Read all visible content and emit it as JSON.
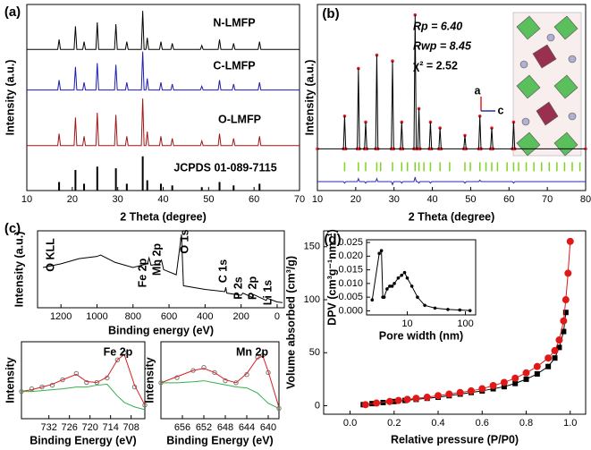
{
  "chart_data": [
    {
      "type": "line",
      "panel_label": "(a)",
      "xlabel": "2 Theta (degree)",
      "ylabel": "Intensity (a.u.)",
      "xlim": [
        10,
        70
      ],
      "xticks": [
        10,
        20,
        30,
        40,
        50,
        60,
        70
      ],
      "ylim": [
        0,
        4.35
      ],
      "x": [
        10,
        16.8,
        17.1,
        17.4,
        20.4,
        20.7,
        21.0,
        22.3,
        22.6,
        22.9,
        25.2,
        25.5,
        25.8,
        29.3,
        29.6,
        29.9,
        31.7,
        32.0,
        32.3,
        35.2,
        35.5,
        35.8,
        36.2,
        36.5,
        36.8,
        39.2,
        39.5,
        39.8,
        41.7,
        42.0,
        42.3,
        48.2,
        48.5,
        48.8,
        52.1,
        52.4,
        52.7,
        55.2,
        55.5,
        55.8,
        60.9,
        61.2,
        61.5,
        70
      ],
      "series": [
        {
          "name": "N-LMFP",
          "color": "#000000",
          "values": [
            3.3,
            3.3,
            3.53,
            3.3,
            3.3,
            3.84,
            3.3,
            3.3,
            3.48,
            3.3,
            3.3,
            3.93,
            3.3,
            3.3,
            3.89,
            3.3,
            3.3,
            3.48,
            3.3,
            3.3,
            4.2,
            3.3,
            3.3,
            3.57,
            3.3,
            3.3,
            3.48,
            3.3,
            3.3,
            3.44,
            3.3,
            3.3,
            3.39,
            3.3,
            3.3,
            3.53,
            3.3,
            3.3,
            3.44,
            3.3,
            3.3,
            3.48,
            3.3,
            3.3
          ]
        },
        {
          "name": "C-LMFP",
          "color": "#1c1cb0",
          "values": [
            2.35,
            2.35,
            2.58,
            2.35,
            2.35,
            2.89,
            2.35,
            2.35,
            2.53,
            2.35,
            2.35,
            2.98,
            2.35,
            2.35,
            2.94,
            2.35,
            2.35,
            2.53,
            2.35,
            2.35,
            3.25,
            2.35,
            2.35,
            2.62,
            2.35,
            2.35,
            2.53,
            2.35,
            2.35,
            2.49,
            2.35,
            2.35,
            2.44,
            2.35,
            2.35,
            2.58,
            2.35,
            2.35,
            2.49,
            2.35,
            2.35,
            2.53,
            2.35,
            2.35
          ]
        },
        {
          "name": "O-LMFP",
          "color": "#a01414",
          "values": [
            1.05,
            1.05,
            1.33,
            1.05,
            1.05,
            1.71,
            1.05,
            1.05,
            1.27,
            1.05,
            1.05,
            1.82,
            1.05,
            1.05,
            1.77,
            1.05,
            1.05,
            1.27,
            1.05,
            1.05,
            2.15,
            1.05,
            1.05,
            1.38,
            1.05,
            1.05,
            1.27,
            1.05,
            1.05,
            1.22,
            1.05,
            1.05,
            1.16,
            1.05,
            1.05,
            1.33,
            1.05,
            1.05,
            1.22,
            1.05,
            1.05,
            1.27,
            1.05,
            1.05
          ]
        }
      ],
      "reference": {
        "name": "JCPDS 01-089-7115",
        "color": "#000000",
        "x": [
          17.1,
          20.7,
          22.6,
          25.5,
          29.6,
          32.0,
          35.5,
          36.5,
          39.5,
          42.0,
          48.5,
          52.4,
          55.5,
          61.2
        ],
        "values": [
          0.2,
          0.48,
          0.16,
          0.56,
          0.52,
          0.16,
          0.8,
          0.24,
          0.16,
          0.12,
          0.08,
          0.2,
          0.12,
          0.16
        ]
      }
    },
    {
      "type": "line",
      "panel_label": "(b)",
      "xlabel": "2 Theta (degree)",
      "ylabel": "Intensity (a.u.)",
      "annotations": [
        "Rp = 6.40",
        "Rwp = 8.45",
        "χ² = 2.52",
        "a",
        "c"
      ],
      "xlim": [
        10,
        80
      ],
      "xticks": [
        10,
        20,
        30,
        40,
        50,
        60,
        70,
        80
      ],
      "ylim": [
        0,
        1.25
      ],
      "x": [
        10,
        16.8,
        17.1,
        17.4,
        20.4,
        20.7,
        21.0,
        22.3,
        22.6,
        22.9,
        25.2,
        25.5,
        25.8,
        29.3,
        29.6,
        29.9,
        31.7,
        32.0,
        32.3,
        35.2,
        35.5,
        35.8,
        36.2,
        36.5,
        36.8,
        39.2,
        39.5,
        39.8,
        41.7,
        42.0,
        42.3,
        48.2,
        48.5,
        48.8,
        52.1,
        52.4,
        52.7,
        55.2,
        55.5,
        55.8,
        60.9,
        61.2,
        61.5,
        80
      ],
      "series": [
        {
          "color": "#e8202a",
          "marker": "dot",
          "values": [
            0.28,
            0.28,
            0.5,
            0.28,
            0.28,
            0.82,
            0.28,
            0.28,
            0.46,
            0.28,
            0.28,
            0.91,
            0.28,
            0.28,
            0.87,
            0.28,
            0.28,
            0.46,
            0.28,
            0.28,
            1.18,
            0.28,
            0.28,
            0.55,
            0.28,
            0.28,
            0.46,
            0.28,
            0.28,
            0.42,
            0.28,
            0.28,
            0.37,
            0.28,
            0.28,
            0.5,
            0.28,
            0.28,
            0.42,
            0.28,
            0.28,
            0.46,
            0.28,
            0.28
          ]
        },
        {
          "color": "#000000",
          "values": [
            0.28,
            0.28,
            0.5,
            0.28,
            0.28,
            0.82,
            0.28,
            0.28,
            0.46,
            0.28,
            0.28,
            0.91,
            0.28,
            0.28,
            0.87,
            0.28,
            0.28,
            0.46,
            0.28,
            0.28,
            1.18,
            0.28,
            0.28,
            0.55,
            0.28,
            0.28,
            0.46,
            0.28,
            0.28,
            0.42,
            0.28,
            0.28,
            0.37,
            0.28,
            0.28,
            0.5,
            0.28,
            0.28,
            0.42,
            0.28,
            0.28,
            0.46,
            0.28,
            0.28
          ]
        },
        {
          "color": "#2a2ab8",
          "values": [
            0.06,
            0.06,
            0.05,
            0.06,
            0.06,
            0.08,
            0.06,
            0.06,
            0.05,
            0.06,
            0.06,
            0.08,
            0.06,
            0.06,
            0.04,
            0.06,
            0.06,
            0.05,
            0.06,
            0.06,
            0.09,
            0.06,
            0.06,
            0.05,
            0.06,
            0.06,
            0.05,
            0.06,
            0.06,
            0.06,
            0.06,
            0.06,
            0.05,
            0.06,
            0.06,
            0.07,
            0.06,
            0.06,
            0.06,
            0.06,
            0.06,
            0.05,
            0.06,
            0.06
          ]
        }
      ],
      "bragg_color": "#7ed321",
      "bragg_positions": [
        17.1,
        20.7,
        22.6,
        25.5,
        26.5,
        29.6,
        32.0,
        33.5,
        35.5,
        36.5,
        37.8,
        39.5,
        42.0,
        44.5,
        48.5,
        49.9,
        52.4,
        54.0,
        55.5,
        57.0,
        59.5,
        61.2,
        62.5,
        64.5,
        66.5,
        68.5,
        70.5,
        72.5,
        74.5,
        76.5,
        78.5
      ]
    },
    {
      "type": "line",
      "panel_label": "(c)",
      "xlabel": "Binding energy (eV)",
      "ylabel": "Intensity (a.u.)",
      "annotations": [
        "O KLL",
        "Fe 2p",
        "Mn 2p",
        "O 1s",
        "C 1s",
        "P 2s",
        "P 2p",
        "Li 1s"
      ],
      "xlim": [
        1330,
        -40
      ],
      "xticks": [
        1200,
        1000,
        800,
        600,
        400,
        200,
        0
      ],
      "ylim": [
        0,
        1.05
      ],
      "x": [
        1300,
        1200,
        1100,
        1000,
        980,
        900,
        800,
        720,
        711,
        700,
        655,
        642,
        630,
        560,
        531,
        520,
        400,
        290,
        285,
        280,
        200,
        190,
        135,
        130,
        60,
        55,
        0,
        -30
      ],
      "series": [
        {
          "color": "#000000",
          "values": [
            0.55,
            0.6,
            0.67,
            0.7,
            0.72,
            0.62,
            0.55,
            0.6,
            0.68,
            0.58,
            0.6,
            0.65,
            0.52,
            0.45,
            1.0,
            0.3,
            0.25,
            0.22,
            0.28,
            0.2,
            0.17,
            0.2,
            0.14,
            0.18,
            0.1,
            0.13,
            0.08,
            0.07
          ]
        }
      ]
    },
    {
      "type": "line",
      "title": "Fe 2p",
      "xlabel": "Binding Energy (eV)",
      "ylabel": "Intensity",
      "xlim": [
        740,
        704
      ],
      "xticks": [
        732,
        726,
        720,
        714,
        708
      ],
      "ylim": [
        0.15,
        1
      ],
      "x": [
        740,
        737,
        734,
        731,
        728,
        724,
        721,
        718,
        715,
        712,
        710,
        707,
        704
      ],
      "series": [
        {
          "color": "#777777",
          "marker": "circle",
          "values": [
            0.45,
            0.48,
            0.5,
            0.52,
            0.58,
            0.65,
            0.55,
            0.55,
            0.6,
            0.8,
            0.88,
            0.5,
            0.3
          ]
        },
        {
          "color": "#d62020",
          "values": [
            0.45,
            0.47,
            0.5,
            0.53,
            0.58,
            0.64,
            0.56,
            0.55,
            0.61,
            0.8,
            0.86,
            0.52,
            0.3
          ]
        },
        {
          "color": "#33b04a",
          "values": [
            0.45,
            0.45,
            0.46,
            0.47,
            0.48,
            0.5,
            0.5,
            0.52,
            0.53,
            0.4,
            0.33,
            0.28,
            0.25
          ]
        }
      ]
    },
    {
      "type": "line",
      "title": "Mn 2p",
      "xlabel": "Binding Energy (eV)",
      "ylabel": "Intensity",
      "xlim": [
        660,
        638
      ],
      "xticks": [
        656,
        652,
        648,
        644,
        640
      ],
      "ylim": [
        0.25,
        1
      ],
      "x": [
        660,
        657,
        654,
        652,
        650,
        648,
        646,
        644,
        642,
        641,
        640,
        638
      ],
      "series": [
        {
          "color": "#777777",
          "marker": "circle",
          "values": [
            0.6,
            0.65,
            0.72,
            0.75,
            0.7,
            0.62,
            0.6,
            0.68,
            0.85,
            0.87,
            0.7,
            0.35
          ]
        },
        {
          "color": "#d62020",
          "values": [
            0.6,
            0.66,
            0.72,
            0.74,
            0.7,
            0.63,
            0.6,
            0.69,
            0.84,
            0.86,
            0.71,
            0.36
          ]
        },
        {
          "color": "#33b04a",
          "values": [
            0.6,
            0.6,
            0.61,
            0.62,
            0.6,
            0.58,
            0.56,
            0.55,
            0.5,
            0.45,
            0.4,
            0.35
          ]
        }
      ]
    },
    {
      "type": "line",
      "panel_label": "(d)",
      "xlabel": "Relative pressure (P/P0)",
      "ylabel": "Volume absorbed (cm³/g)",
      "xlim": [
        -0.12,
        1.07
      ],
      "xticks": [
        {
          "value": 0,
          "label": "0.0"
        },
        0.2,
        0.4,
        0.6,
        0.8,
        {
          "value": 1,
          "label": "1.0"
        }
      ],
      "ylim": [
        -8,
        165
      ],
      "yticks": [
        0,
        50,
        100,
        150
      ],
      "series": [
        {
          "color": "#000000",
          "marker": "square",
          "x": [
            0.06,
            0.1,
            0.15,
            0.2,
            0.25,
            0.3,
            0.35,
            0.4,
            0.45,
            0.5,
            0.55,
            0.6,
            0.65,
            0.7,
            0.75,
            0.8,
            0.85,
            0.9,
            0.93,
            0.95,
            0.97,
            0.98
          ],
          "values": [
            1,
            2,
            3,
            4,
            5,
            6,
            7,
            8,
            9.5,
            11,
            12.5,
            14,
            16,
            18,
            21,
            25,
            30,
            37,
            45,
            55,
            70,
            88
          ]
        },
        {
          "color": "#e01818",
          "marker": "circle",
          "x": [
            0.07,
            0.12,
            0.18,
            0.22,
            0.26,
            0.3,
            0.35,
            0.4,
            0.45,
            0.5,
            0.55,
            0.6,
            0.65,
            0.7,
            0.75,
            0.8,
            0.85,
            0.9,
            0.93,
            0.95,
            0.97,
            0.98,
            0.99,
            1.0
          ],
          "values": [
            1,
            2.5,
            4,
            5,
            6,
            7,
            8,
            9.5,
            11,
            12.5,
            14,
            16,
            19,
            22,
            26,
            31,
            37,
            45,
            52,
            62,
            80,
            100,
            125,
            155
          ]
        }
      ]
    },
    {
      "type": "line",
      "xlabel": "Pore width (nm)",
      "ylabel": "DPV (cm³g⁻¹nm⁻¹)",
      "xlog": true,
      "xlim": [
        2,
        150
      ],
      "xticks": [
        10,
        100
      ],
      "ylim": [
        -0.0015,
        0.026
      ],
      "yticks": [
        {
          "value": 0,
          "label": "0.000"
        },
        0.005,
        {
          "value": 0.01,
          "label": "0.010"
        },
        0.015,
        {
          "value": 0.02,
          "label": "0.020"
        },
        0.025
      ],
      "x": [
        2.5,
        3.3,
        3.6,
        3.8,
        4,
        4.5,
        5,
        5.5,
        6,
        7,
        8,
        9,
        10,
        12,
        15,
        20,
        30,
        50,
        80,
        120
      ],
      "series": [
        {
          "color": "#000000",
          "marker": "dot",
          "values": [
            0.004,
            0.021,
            0.022,
            0.005,
            0.005,
            0.008,
            0.009,
            0.009,
            0.01,
            0.012,
            0.013,
            0.014,
            0.012,
            0.009,
            0.005,
            0.002,
            0.001,
            0.0005,
            0.0003,
            0.0001
          ]
        }
      ]
    }
  ]
}
